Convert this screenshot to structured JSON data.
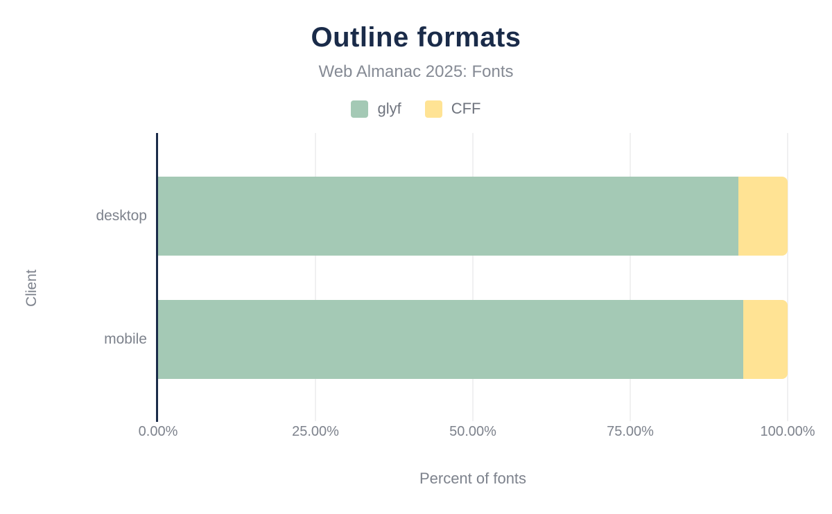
{
  "chart_data": {
    "type": "bar",
    "orientation": "horizontal",
    "stacked": true,
    "title": "Outline formats",
    "subtitle": "Web Almanac 2025: Fonts",
    "xlabel": "Percent of fonts",
    "ylabel": "Client",
    "categories": [
      "desktop",
      "mobile"
    ],
    "series": [
      {
        "name": "glyf",
        "color": "#a4c9b5",
        "values": [
          92.2,
          92.9
        ]
      },
      {
        "name": "CFF",
        "color": "#ffe394",
        "values": [
          7.8,
          7.1
        ]
      }
    ],
    "xlim": [
      0,
      100
    ],
    "x_ticks": [
      {
        "label": "0.00%",
        "value": 0
      },
      {
        "label": "25.00%",
        "value": 25
      },
      {
        "label": "50.00%",
        "value": 50
      },
      {
        "label": "75.00%",
        "value": 75
      },
      {
        "label": "100.00%",
        "value": 100
      }
    ],
    "grid": "vertical",
    "legend_position": "top"
  },
  "colors": {
    "title": "#1a2b49",
    "axis_line": "#1a2b49",
    "grid_line": "#f0f0f1",
    "text": "#7d828c",
    "background": "#ffffff"
  }
}
